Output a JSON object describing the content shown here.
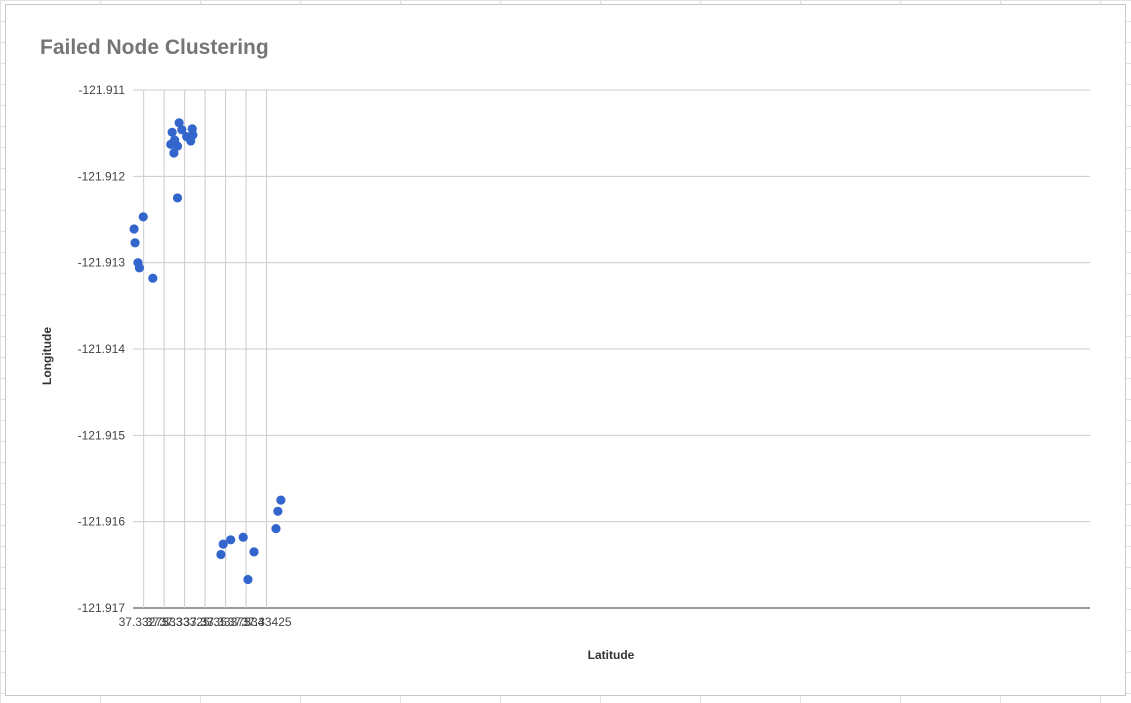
{
  "chart_data": {
    "type": "scatter",
    "title": "Failed Node Clustering",
    "xlabel": "Latitude",
    "ylabel": "Longitude",
    "xlim": [
      37.33262,
      37.3443
    ],
    "ylim": [
      -121.917,
      -121.911
    ],
    "x_ticks": [
      "37.33275",
      "37.333",
      "37.33325",
      "37.3335",
      "37.33375",
      "37.334",
      "37.33425"
    ],
    "x_tick_values": [
      37.33275,
      37.333,
      37.33325,
      37.3335,
      37.33375,
      37.334,
      37.33425
    ],
    "y_ticks": [
      "-121.911",
      "-121.912",
      "-121.913",
      "-121.914",
      "-121.915",
      "-121.916",
      "-121.917"
    ],
    "y_tick_values": [
      -121.911,
      -121.912,
      -121.913,
      -121.914,
      -121.915,
      -121.916,
      -121.917
    ],
    "grid": true,
    "legend": "none",
    "marker_color": "#3366cc",
    "points": [
      {
        "x": 37.332633,
        "y": -121.91261
      },
      {
        "x": 37.332645,
        "y": -121.91277
      },
      {
        "x": 37.332681,
        "y": -121.913
      },
      {
        "x": 37.332698,
        "y": -121.91306
      },
      {
        "x": 37.332745,
        "y": -121.91247
      },
      {
        "x": 37.332862,
        "y": -121.91318
      },
      {
        "x": 37.333081,
        "y": -121.91163
      },
      {
        "x": 37.333098,
        "y": -121.91149
      },
      {
        "x": 37.333119,
        "y": -121.91173
      },
      {
        "x": 37.333128,
        "y": -121.91158
      },
      {
        "x": 37.333163,
        "y": -121.91165
      },
      {
        "x": 37.333163,
        "y": -121.91225
      },
      {
        "x": 37.333183,
        "y": -121.91138
      },
      {
        "x": 37.333216,
        "y": -121.91146
      },
      {
        "x": 37.333275,
        "y": -121.91154
      },
      {
        "x": 37.333325,
        "y": -121.91159
      },
      {
        "x": 37.333343,
        "y": -121.91145
      },
      {
        "x": 37.333351,
        "y": -121.91152
      },
      {
        "x": 37.333693,
        "y": -121.91638
      },
      {
        "x": 37.333721,
        "y": -121.91626
      },
      {
        "x": 37.333812,
        "y": -121.91621
      },
      {
        "x": 37.333965,
        "y": -121.91618
      },
      {
        "x": 37.334023,
        "y": -121.91667
      },
      {
        "x": 37.334097,
        "y": -121.91635
      },
      {
        "x": 37.334365,
        "y": -121.91608
      },
      {
        "x": 37.334388,
        "y": -121.91588
      },
      {
        "x": 37.334425,
        "y": -121.91575
      }
    ]
  }
}
